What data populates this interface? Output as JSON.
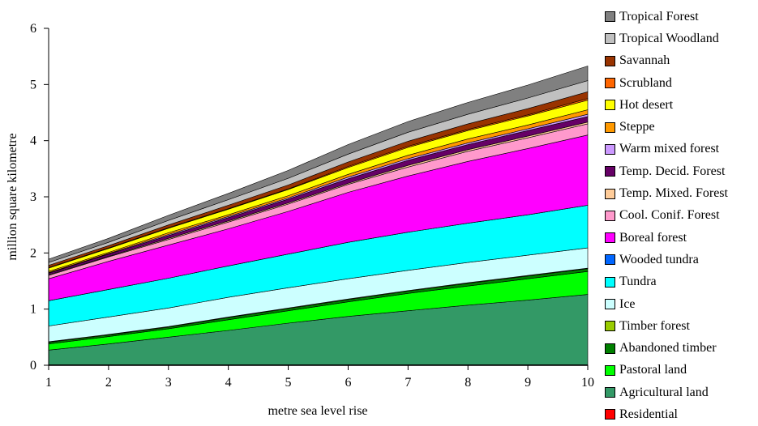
{
  "chart_data": {
    "type": "area",
    "stacked": true,
    "xlabel": "metre sea level rise",
    "ylabel": "million square kilometre",
    "ylim": [
      0,
      6
    ],
    "yticks": [
      0,
      1,
      2,
      3,
      4,
      5,
      6
    ],
    "x": [
      1,
      2,
      3,
      4,
      5,
      6,
      7,
      8,
      9,
      10
    ],
    "legend_position": "right",
    "series": [
      {
        "name": "Residential",
        "color": "#ff0000",
        "values": [
          0.01,
          0.01,
          0.01,
          0.01,
          0.01,
          0.01,
          0.01,
          0.01,
          0.01,
          0.01
        ]
      },
      {
        "name": "Agricultural land",
        "color": "#339966",
        "values": [
          0.26,
          0.37,
          0.49,
          0.61,
          0.74,
          0.86,
          0.96,
          1.06,
          1.15,
          1.25
        ]
      },
      {
        "name": "Pastoral land",
        "color": "#00ff00",
        "values": [
          0.11,
          0.13,
          0.15,
          0.19,
          0.22,
          0.26,
          0.31,
          0.34,
          0.38,
          0.41
        ]
      },
      {
        "name": "Abandoned timber",
        "color": "#008000",
        "values": [
          0.03,
          0.03,
          0.03,
          0.04,
          0.04,
          0.04,
          0.04,
          0.05,
          0.05,
          0.05
        ]
      },
      {
        "name": "Timber forest",
        "color": "#99cc00",
        "values": [
          0.01,
          0.01,
          0.01,
          0.01,
          0.01,
          0.01,
          0.01,
          0.01,
          0.01,
          0.01
        ]
      },
      {
        "name": "Ice",
        "color": "#ccffff",
        "values": [
          0.28,
          0.31,
          0.33,
          0.35,
          0.36,
          0.36,
          0.36,
          0.36,
          0.36,
          0.36
        ]
      },
      {
        "name": "Tundra",
        "color": "#00ffff",
        "values": [
          0.45,
          0.49,
          0.53,
          0.56,
          0.6,
          0.65,
          0.68,
          0.7,
          0.72,
          0.76
        ]
      },
      {
        "name": "Wooded tundra",
        "color": "#0066ff",
        "values": [
          0.0,
          0.0,
          0.0,
          0.0,
          0.0,
          0.0,
          0.0,
          0.0,
          0.0,
          0.0
        ]
      },
      {
        "name": "Boreal forest",
        "color": "#ff00ff",
        "values": [
          0.39,
          0.5,
          0.59,
          0.66,
          0.76,
          0.89,
          1.0,
          1.1,
          1.18,
          1.25
        ]
      },
      {
        "name": "Cool. Conif. Forest",
        "color": "#ff99cc",
        "values": [
          0.06,
          0.08,
          0.1,
          0.12,
          0.13,
          0.14,
          0.16,
          0.18,
          0.19,
          0.2
        ]
      },
      {
        "name": "Temp. Mixed. Forest",
        "color": "#ffcc99",
        "values": [
          0.01,
          0.01,
          0.02,
          0.02,
          0.02,
          0.02,
          0.03,
          0.03,
          0.03,
          0.03
        ]
      },
      {
        "name": "Temp. Decid. Forest",
        "color": "#660066",
        "values": [
          0.03,
          0.04,
          0.05,
          0.06,
          0.07,
          0.08,
          0.09,
          0.09,
          0.1,
          0.1
        ]
      },
      {
        "name": "Warm mixed forest",
        "color": "#cc99ff",
        "values": [
          0.01,
          0.01,
          0.02,
          0.02,
          0.02,
          0.03,
          0.03,
          0.03,
          0.03,
          0.04
        ]
      },
      {
        "name": "Steppe",
        "color": "#ff9900",
        "values": [
          0.02,
          0.02,
          0.03,
          0.03,
          0.04,
          0.05,
          0.06,
          0.07,
          0.07,
          0.08
        ]
      },
      {
        "name": "Hot desert",
        "color": "#ffff00",
        "values": [
          0.06,
          0.07,
          0.08,
          0.1,
          0.11,
          0.12,
          0.14,
          0.15,
          0.16,
          0.17
        ]
      },
      {
        "name": "Scrubland",
        "color": "#ff6600",
        "values": [
          0.01,
          0.01,
          0.01,
          0.01,
          0.01,
          0.02,
          0.02,
          0.02,
          0.02,
          0.03
        ]
      },
      {
        "name": "Savannah",
        "color": "#993300",
        "values": [
          0.04,
          0.04,
          0.05,
          0.06,
          0.07,
          0.08,
          0.09,
          0.1,
          0.11,
          0.12
        ]
      },
      {
        "name": "Tropical Woodland",
        "color": "#c0c0c0",
        "values": [
          0.05,
          0.06,
          0.08,
          0.1,
          0.12,
          0.14,
          0.16,
          0.17,
          0.19,
          0.2
        ]
      },
      {
        "name": "Tropical Forest",
        "color": "#808080",
        "values": [
          0.06,
          0.07,
          0.09,
          0.11,
          0.14,
          0.17,
          0.19,
          0.21,
          0.23,
          0.26
        ]
      }
    ]
  }
}
